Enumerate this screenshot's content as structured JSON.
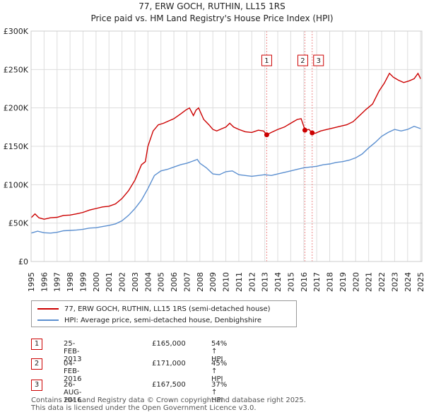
{
  "header": {
    "title": "77, ERW GOCH, RUTHIN, LL15 1RS",
    "subtitle": "Price paid vs. HM Land Registry's House Price Index (HPI)"
  },
  "chart_data": {
    "type": "line",
    "x_range": [
      1995,
      2025.1
    ],
    "ylim": [
      0,
      300000
    ],
    "y_ticks": [
      0,
      50000,
      100000,
      150000,
      200000,
      250000,
      300000
    ],
    "y_tick_labels": [
      "£0",
      "£50K",
      "£100K",
      "£150K",
      "£200K",
      "£250K",
      "£300K"
    ],
    "x_ticks": [
      1995,
      1996,
      1997,
      1998,
      1999,
      2000,
      2001,
      2002,
      2003,
      2004,
      2005,
      2006,
      2007,
      2008,
      2009,
      2010,
      2011,
      2012,
      2013,
      2014,
      2015,
      2016,
      2017,
      2018,
      2019,
      2020,
      2021,
      2022,
      2023,
      2024,
      2025
    ],
    "x_tick_labels": [
      "1995",
      "1996",
      "1997",
      "1998",
      "1999",
      "2000",
      "2001",
      "2002",
      "2003",
      "2004",
      "2005",
      "2006",
      "2007",
      "2008",
      "2009",
      "2010",
      "2011",
      "2012",
      "2013",
      "2014",
      "2015",
      "2016",
      "2017",
      "2018",
      "2019",
      "2020",
      "2021",
      "2022",
      "2023",
      "2024",
      "2025"
    ],
    "grid": true,
    "series": [
      {
        "name": "77, ERW GOCH, RUTHIN, LL15 1RS (semi-detached house)",
        "color": "#cc0000",
        "points": [
          [
            1995.0,
            57000
          ],
          [
            1995.3,
            62000
          ],
          [
            1995.6,
            57000
          ],
          [
            1996.0,
            55000
          ],
          [
            1996.5,
            57000
          ],
          [
            1997.0,
            57500
          ],
          [
            1997.5,
            60000
          ],
          [
            1998.0,
            60500
          ],
          [
            1998.5,
            62000
          ],
          [
            1999.0,
            64000
          ],
          [
            1999.5,
            67000
          ],
          [
            2000.0,
            69000
          ],
          [
            2000.5,
            71000
          ],
          [
            2001.0,
            72000
          ],
          [
            2001.5,
            75000
          ],
          [
            2002.0,
            82000
          ],
          [
            2002.5,
            92000
          ],
          [
            2003.0,
            106000
          ],
          [
            2003.5,
            126000
          ],
          [
            2003.8,
            130000
          ],
          [
            2004.0,
            150000
          ],
          [
            2004.4,
            170000
          ],
          [
            2004.8,
            178000
          ],
          [
            2005.2,
            180000
          ],
          [
            2005.6,
            183000
          ],
          [
            2006.0,
            186000
          ],
          [
            2006.5,
            192000
          ],
          [
            2006.9,
            197000
          ],
          [
            2007.2,
            200000
          ],
          [
            2007.5,
            190000
          ],
          [
            2007.7,
            197000
          ],
          [
            2007.9,
            200000
          ],
          [
            2008.3,
            185000
          ],
          [
            2008.7,
            178000
          ],
          [
            2009.0,
            172000
          ],
          [
            2009.3,
            170000
          ],
          [
            2009.7,
            173000
          ],
          [
            2010.0,
            175000
          ],
          [
            2010.3,
            180000
          ],
          [
            2010.6,
            175000
          ],
          [
            2011.0,
            172000
          ],
          [
            2011.5,
            169000
          ],
          [
            2012.0,
            168000
          ],
          [
            2012.5,
            171000
          ],
          [
            2012.9,
            170000
          ],
          [
            2013.15,
            165000
          ],
          [
            2013.5,
            168000
          ],
          [
            2014.0,
            172000
          ],
          [
            2014.5,
            175000
          ],
          [
            2015.0,
            180000
          ],
          [
            2015.5,
            185000
          ],
          [
            2015.8,
            186000
          ],
          [
            2016.1,
            171000
          ],
          [
            2016.4,
            172000
          ],
          [
            2016.65,
            167500
          ],
          [
            2016.9,
            167000
          ],
          [
            2017.3,
            170000
          ],
          [
            2017.8,
            172000
          ],
          [
            2018.3,
            174000
          ],
          [
            2018.8,
            176000
          ],
          [
            2019.3,
            178000
          ],
          [
            2019.8,
            182000
          ],
          [
            2020.3,
            190000
          ],
          [
            2020.8,
            198000
          ],
          [
            2021.3,
            205000
          ],
          [
            2021.8,
            222000
          ],
          [
            2022.2,
            232000
          ],
          [
            2022.6,
            245000
          ],
          [
            2022.9,
            240000
          ],
          [
            2023.3,
            236000
          ],
          [
            2023.7,
            233000
          ],
          [
            2024.1,
            235000
          ],
          [
            2024.5,
            238000
          ],
          [
            2024.8,
            245000
          ],
          [
            2025.0,
            238000
          ]
        ]
      },
      {
        "name": "HPI: Average price, semi-detached house, Denbighshire",
        "color": "#5b8fd0",
        "points": [
          [
            1995.0,
            37000
          ],
          [
            1995.5,
            39500
          ],
          [
            1996.0,
            37500
          ],
          [
            1996.5,
            37000
          ],
          [
            1997.0,
            38000
          ],
          [
            1997.5,
            40000
          ],
          [
            1998.0,
            40500
          ],
          [
            1998.5,
            41000
          ],
          [
            1999.0,
            42000
          ],
          [
            1999.5,
            43500
          ],
          [
            2000.0,
            44000
          ],
          [
            2000.5,
            45500
          ],
          [
            2001.0,
            47000
          ],
          [
            2001.5,
            49000
          ],
          [
            2002.0,
            53000
          ],
          [
            2002.5,
            60000
          ],
          [
            2003.0,
            69000
          ],
          [
            2003.5,
            80000
          ],
          [
            2004.0,
            95000
          ],
          [
            2004.5,
            112000
          ],
          [
            2005.0,
            118000
          ],
          [
            2005.5,
            120000
          ],
          [
            2006.0,
            123000
          ],
          [
            2006.5,
            126000
          ],
          [
            2007.0,
            128000
          ],
          [
            2007.5,
            131000
          ],
          [
            2007.8,
            133000
          ],
          [
            2008.0,
            128000
          ],
          [
            2008.5,
            122000
          ],
          [
            2009.0,
            114000
          ],
          [
            2009.5,
            113000
          ],
          [
            2010.0,
            117000
          ],
          [
            2010.5,
            118000
          ],
          [
            2011.0,
            113000
          ],
          [
            2011.5,
            112000
          ],
          [
            2012.0,
            111000
          ],
          [
            2012.5,
            112000
          ],
          [
            2013.0,
            113000
          ],
          [
            2013.5,
            112000
          ],
          [
            2014.0,
            114000
          ],
          [
            2014.5,
            116000
          ],
          [
            2015.0,
            118000
          ],
          [
            2015.5,
            120000
          ],
          [
            2016.0,
            122000
          ],
          [
            2016.5,
            123000
          ],
          [
            2017.0,
            124000
          ],
          [
            2017.5,
            126000
          ],
          [
            2018.0,
            127000
          ],
          [
            2018.5,
            129000
          ],
          [
            2019.0,
            130000
          ],
          [
            2019.5,
            132000
          ],
          [
            2020.0,
            135000
          ],
          [
            2020.5,
            140000
          ],
          [
            2021.0,
            148000
          ],
          [
            2021.5,
            155000
          ],
          [
            2022.0,
            163000
          ],
          [
            2022.5,
            168000
          ],
          [
            2023.0,
            172000
          ],
          [
            2023.5,
            170000
          ],
          [
            2024.0,
            172000
          ],
          [
            2024.5,
            176000
          ],
          [
            2025.0,
            173000
          ]
        ]
      }
    ],
    "transactions": [
      {
        "label": "1",
        "x": 2013.15,
        "price": 165000
      },
      {
        "label": "2",
        "x": 2016.09,
        "price": 171000
      },
      {
        "label": "3",
        "x": 2016.65,
        "price": 167500
      }
    ]
  },
  "legend": {
    "items": [
      {
        "label": "77, ERW GOCH, RUTHIN, LL15 1RS (semi-detached house)",
        "color": "#cc0000"
      },
      {
        "label": "HPI: Average price, semi-detached house, Denbighshire",
        "color": "#5b8fd0"
      }
    ]
  },
  "table": {
    "rows": [
      {
        "num": "1",
        "date": "25-FEB-2013",
        "price": "£165,000",
        "hpi": "54% ↑ HPI"
      },
      {
        "num": "2",
        "date": "04-FEB-2016",
        "price": "£171,000",
        "hpi": "45% ↑ HPI"
      },
      {
        "num": "3",
        "date": "26-AUG-2016",
        "price": "£167,500",
        "hpi": "37% ↑ HPI"
      }
    ]
  },
  "footer": {
    "line1": "Contains HM Land Registry data © Crown copyright and database right 2025.",
    "line2": "This data is licensed under the Open Government Licence v3.0."
  }
}
